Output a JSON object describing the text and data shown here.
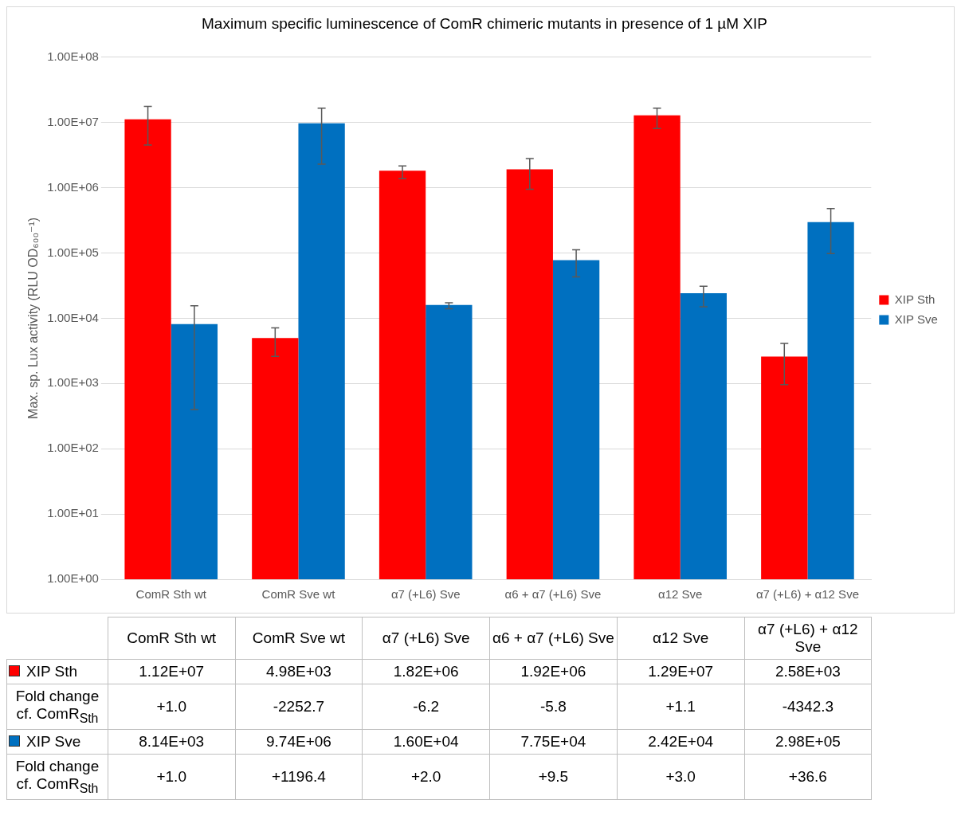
{
  "chart_data": {
    "type": "bar",
    "title": "Maximum specific luminescence of ComR chimeric mutants in presence of 1 µM XIP",
    "ylabel": "Max. sp. Lux activity (RLU OD₆₀₀⁻¹)",
    "categories": [
      "ComR Sth wt",
      "ComR Sve wt",
      "α7 (+L6) Sve",
      "α6 + α7 (+L6) Sve",
      "α12 Sve",
      "α7 (+L6) + α12 Sve"
    ],
    "series": [
      {
        "name": "XIP Sth",
        "color": "#ff0000",
        "values": [
          11200000,
          4980,
          1820000,
          1920000,
          12900000,
          2580
        ],
        "value_labels": [
          "1.12E+07",
          "4.98E+03",
          "1.82E+06",
          "1.92E+06",
          "1.29E+07",
          "2.58E+03"
        ],
        "errors": [
          [
            4500000,
            17700000
          ],
          [
            2600,
            7100
          ],
          [
            1380000,
            2150000
          ],
          [
            950000,
            2800000
          ],
          [
            8100000,
            16600000
          ],
          [
            960,
            4100
          ]
        ]
      },
      {
        "name": "XIP Sve",
        "color": "#0070c0",
        "values": [
          8140,
          9740000,
          16000,
          77500,
          24200,
          298000
        ],
        "value_labels": [
          "8.14E+03",
          "9.74E+06",
          "1.60E+04",
          "7.75E+04",
          "2.42E+04",
          "2.98E+05"
        ],
        "errors": [
          [
            400,
            15500
          ],
          [
            2300000,
            16600000
          ],
          [
            14000,
            17200
          ],
          [
            43000,
            112000
          ],
          [
            15000,
            31000
          ],
          [
            98000,
            480000
          ]
        ]
      }
    ],
    "log": true,
    "ylim": [
      1,
      100000000
    ],
    "yticks": [
      {
        "value": 1,
        "label": "1.00E+00"
      },
      {
        "value": 10,
        "label": "1.00E+01"
      },
      {
        "value": 100,
        "label": "1.00E+02"
      },
      {
        "value": 1000,
        "label": "1.00E+03"
      },
      {
        "value": 10000,
        "label": "1.00E+04"
      },
      {
        "value": 100000,
        "label": "1.00E+05"
      },
      {
        "value": 1000000,
        "label": "1.00E+06"
      },
      {
        "value": 10000000,
        "label": "1.00E+07"
      },
      {
        "value": 100000000,
        "label": "1.00E+08"
      }
    ],
    "grid": "y",
    "legend": "right",
    "annotations": [
      "Fold change cf. ComR$_{Sth}$",
      "+1.0",
      "-2252.7",
      "-6.2",
      "-5.8",
      "+1.1",
      "-4342.3",
      "Fold change cf. ComR$_{Sth}$",
      "+1.0",
      "+1196.4",
      "+2.0",
      "+9.5",
      "+3.0",
      "+36.6"
    ]
  }
}
